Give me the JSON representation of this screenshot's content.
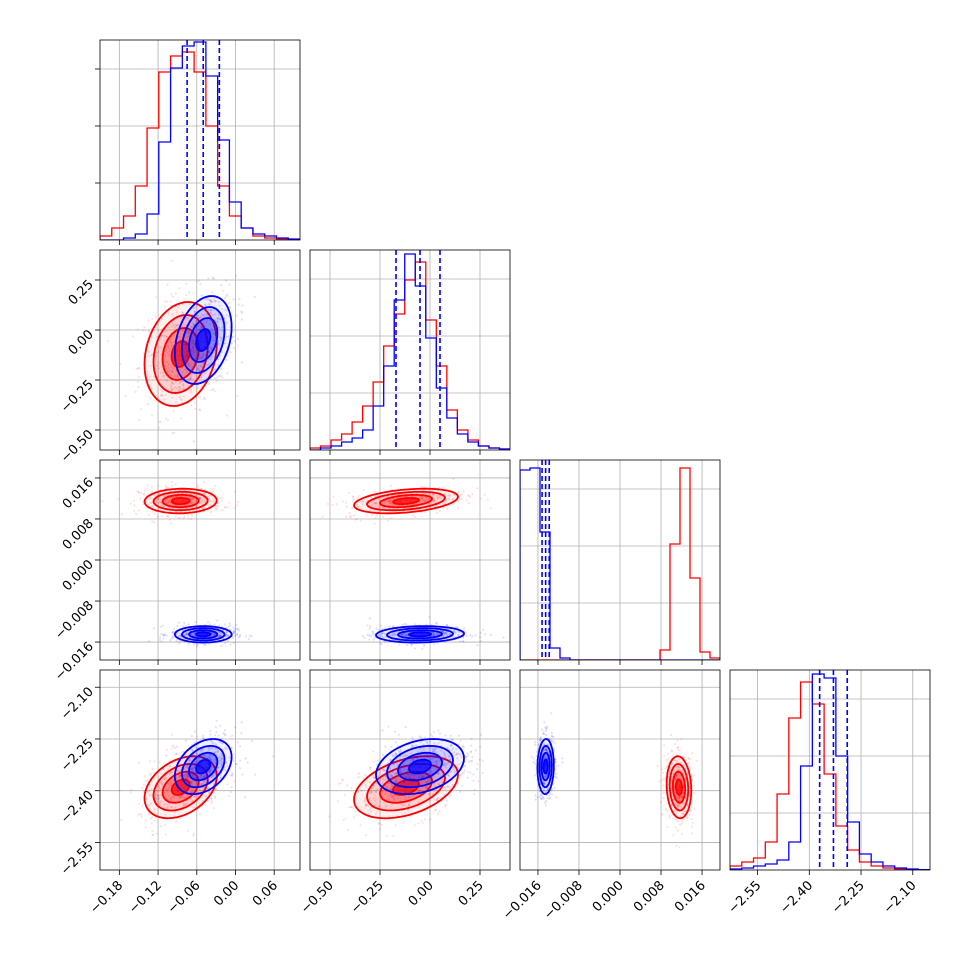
{
  "chart_data": {
    "type": "corner",
    "title": "",
    "grid": true,
    "parameters": [
      {
        "range": [
          -0.21,
          0.1
        ],
        "ticks": [
          "−0.18",
          "−0.12",
          "−0.06",
          "0.00",
          "0.06"
        ],
        "tick_values": [
          -0.18,
          -0.12,
          -0.06,
          0.0,
          0.06
        ]
      },
      {
        "range": [
          -0.6,
          0.4
        ],
        "ticks": [
          "−0.50",
          "−0.25",
          "0.00",
          "0.25"
        ],
        "tick_values": [
          -0.5,
          -0.25,
          0.0,
          0.25
        ]
      },
      {
        "range": [
          -0.0195,
          0.0195
        ],
        "ticks": [
          "−0.016",
          "−0.008",
          "0.000",
          "0.008",
          "0.016"
        ],
        "tick_values": [
          -0.016,
          -0.008,
          0.0,
          0.008,
          0.016
        ]
      },
      {
        "range": [
          -2.63,
          -2.05
        ],
        "ticks": [
          "−2.55",
          "−2.40",
          "−2.25",
          "−2.10"
        ],
        "tick_values": [
          -2.55,
          -2.4,
          -2.25,
          -2.1
        ]
      }
    ],
    "series": [
      {
        "color": "#ff0000",
        "means": [
          -0.085,
          -0.12,
          0.0115,
          -2.39
        ],
        "stds": [
          0.028,
          0.13,
          0.0012,
          0.045
        ],
        "corr": [
          [
            1,
            0.2,
            0.05,
            0.35
          ],
          [
            0.2,
            1,
            0.35,
            0.4
          ],
          [
            0.05,
            0.35,
            1,
            -0.1
          ],
          [
            0.35,
            0.4,
            -0.1,
            1
          ]
        ],
        "hist": [
          [
            0.02,
            0.06,
            0.12,
            0.27,
            0.56,
            0.84,
            0.92,
            0.94,
            0.84,
            0.57,
            0.27,
            0.12,
            0.06,
            0.02,
            0.01,
            0.005,
            0.002
          ],
          [
            0.01,
            0.02,
            0.05,
            0.08,
            0.14,
            0.22,
            0.34,
            0.52,
            0.68,
            0.85,
            0.94,
            0.65,
            0.42,
            0.2,
            0.1,
            0.05,
            0.02,
            0.01,
            0.005
          ],
          [
            0.0,
            0.0,
            0.0,
            0.0,
            0.0,
            0.0,
            0.0,
            0.0,
            0.0,
            0.0,
            0.0,
            0.0,
            0.0,
            0.0,
            0.05,
            0.58,
            0.96,
            0.41,
            0.04,
            0.01
          ],
          [
            0.02,
            0.04,
            0.06,
            0.14,
            0.38,
            0.76,
            0.94,
            0.83,
            0.48,
            0.22,
            0.1,
            0.04,
            0.02,
            0.01,
            0.005,
            0.002,
            0.001
          ]
        ]
      },
      {
        "color": "#0000ff",
        "means": [
          -0.05,
          -0.05,
          -0.0145,
          -2.33
        ],
        "stds": [
          0.022,
          0.11,
          0.0008,
          0.04
        ],
        "corr": [
          [
            1,
            0.3,
            0.0,
            0.35
          ],
          [
            0.3,
            1,
            0.1,
            0.3
          ],
          [
            0.0,
            0.1,
            1,
            0.05
          ],
          [
            0.35,
            0.3,
            0.05,
            1
          ]
        ],
        "hist": [
          [
            0.0,
            0.0,
            0.01,
            0.03,
            0.13,
            0.49,
            0.86,
            0.97,
            0.99,
            0.82,
            0.5,
            0.19,
            0.06,
            0.03,
            0.02,
            0.01,
            0.005
          ],
          [
            0.0,
            0.01,
            0.02,
            0.04,
            0.06,
            0.1,
            0.22,
            0.42,
            0.75,
            0.98,
            0.82,
            0.56,
            0.31,
            0.16,
            0.08,
            0.04,
            0.02,
            0.01,
            0.005
          ],
          [
            0.95,
            0.96,
            0.64,
            0.06,
            0.01,
            0.0,
            0.0,
            0.0,
            0.0,
            0.0,
            0.0,
            0.0,
            0.0,
            0.0,
            0.0,
            0.0,
            0.0,
            0.0,
            0.0,
            0.0
          ],
          [
            0.005,
            0.01,
            0.02,
            0.03,
            0.05,
            0.14,
            0.52,
            0.98,
            0.96,
            0.57,
            0.24,
            0.08,
            0.04,
            0.02,
            0.01,
            0.005,
            0.002
          ]
        ],
        "quantiles": [
          [
            -0.075,
            -0.05,
            -0.025
          ],
          [
            -0.17,
            -0.05,
            0.05
          ],
          [
            -0.0152,
            -0.0145,
            -0.0138
          ],
          [
            -2.37,
            -2.33,
            -2.29
          ]
        ]
      }
    ]
  }
}
